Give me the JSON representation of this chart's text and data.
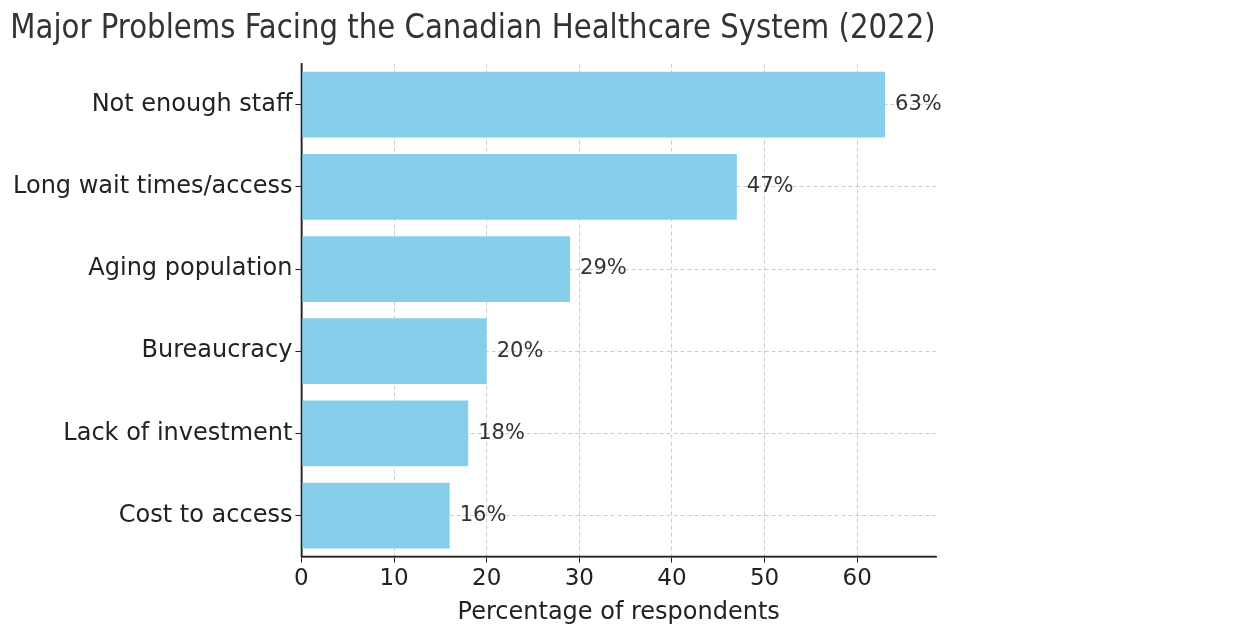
{
  "chart_data": {
    "type": "bar",
    "orientation": "horizontal",
    "title": "Major Problems Facing the Canadian Healthcare System (2022)",
    "xlabel": "Percentage of respondents",
    "categories": [
      "Not enough staff",
      "Long wait times/access",
      "Aging population",
      "Bureaucracy",
      "Lack of investment",
      "Cost to access"
    ],
    "values": [
      63,
      47,
      29,
      20,
      18,
      16
    ],
    "color": "#87ceeb",
    "value_labels": [
      "63%",
      "47%",
      "29%",
      "20%",
      "18%",
      "16%"
    ],
    "xlim": [
      0,
      68.5
    ],
    "xticks": [
      0,
      10,
      20,
      30,
      40,
      50,
      60
    ],
    "grid": true
  }
}
